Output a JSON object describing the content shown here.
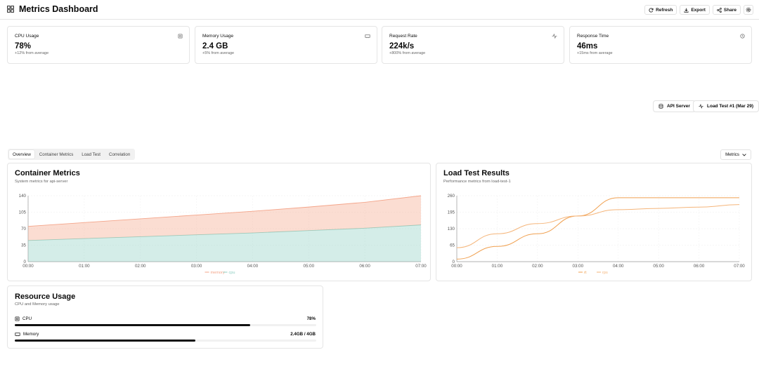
{
  "header": {
    "title": "Metrics Dashboard",
    "refresh_label": "Refresh",
    "export_label": "Export",
    "share_label": "Share"
  },
  "stats": [
    {
      "label": "CPU Usage",
      "value": "78%",
      "sub": "+12% from average",
      "icon": "cpu-icon"
    },
    {
      "label": "Memory Usage",
      "value": "2.4 GB",
      "sub": "+5% from average",
      "icon": "memory-icon"
    },
    {
      "label": "Request Rate",
      "value": "224k/s",
      "sub": "+800% from average",
      "icon": "activity-icon"
    },
    {
      "label": "Response Time",
      "value": "46ms",
      "sub": "+15ms from average",
      "icon": "clock-icon"
    }
  ],
  "selectors": {
    "server_label": "API Server",
    "test_label": "Load Test #1 (Mar 29)"
  },
  "tabs": [
    "Overview",
    "Container Metrics",
    "Load Test",
    "Correlation"
  ],
  "active_tab": "Overview",
  "metrics_dropdown": "Metrics",
  "container_chart": {
    "title": "Container Metrics",
    "subtitle": "System metrics for api-server"
  },
  "loadtest_chart": {
    "title": "Load Test Results",
    "subtitle": "Performance metrics from load-test-1"
  },
  "resource": {
    "title": "Resource Usage",
    "subtitle": "CPU and Memory usage",
    "cpu_label": "CPU",
    "cpu_value": "78%",
    "cpu_fraction": 0.78,
    "memory_label": "Memory",
    "memory_value": "2.4GB / 4GB",
    "memory_fraction": 0.6
  },
  "colors": {
    "cpu": "#8fcfc2",
    "memory": "#f4a58a",
    "rps": "#f5b57a",
    "rt": "#f0a050"
  },
  "chart_data": [
    {
      "type": "area",
      "title": "Container Metrics",
      "categories": [
        "00:00",
        "01:00",
        "02:00",
        "03:00",
        "04:00",
        "05:00",
        "06:00",
        "07:00"
      ],
      "yticks": [
        0,
        35,
        70,
        105,
        140
      ],
      "ylim": [
        0,
        140
      ],
      "stacked": true,
      "series": [
        {
          "name": "cpu",
          "values": [
            45,
            49,
            53,
            57,
            61,
            66,
            71,
            78
          ]
        },
        {
          "name": "memory",
          "values": [
            30,
            34,
            38,
            42,
            46,
            50,
            55,
            62
          ]
        }
      ],
      "legend": "bottom"
    },
    {
      "type": "line",
      "title": "Load Test Results",
      "categories": [
        "00:00",
        "01:00",
        "02:00",
        "03:00",
        "04:00",
        "05:00",
        "06:00",
        "07:00"
      ],
      "yticks": [
        0,
        65,
        130,
        195,
        260
      ],
      "ylim": [
        0,
        260
      ],
      "series": [
        {
          "name": "rt",
          "values": [
            10,
            60,
            110,
            180,
            252,
            252,
            252,
            252
          ]
        },
        {
          "name": "rps",
          "values": [
            55,
            110,
            150,
            180,
            205,
            210,
            215,
            225
          ]
        }
      ],
      "legend": "bottom"
    }
  ]
}
